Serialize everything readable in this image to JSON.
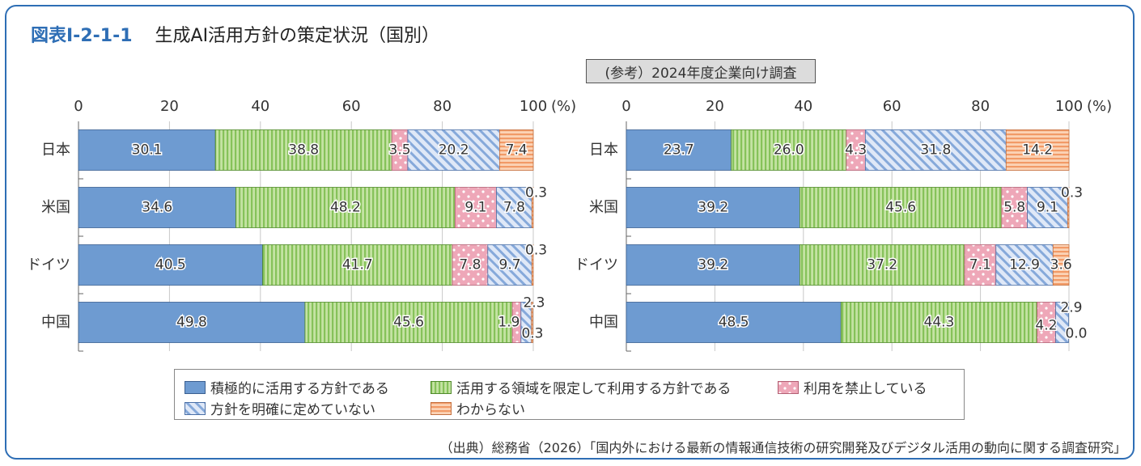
{
  "header": {
    "label": "図表Ⅰ-2-1-1",
    "title": "生成AI活用方針の策定状況（国別）"
  },
  "reference_note": "(参考）2024年度企業向け調査",
  "axis": {
    "ticks": [
      "0",
      "20",
      "40",
      "60",
      "80",
      "100"
    ],
    "unit": "(%)"
  },
  "legend": {
    "items": [
      "積極的に活用する方針である",
      "活用する領域を限定して利用する方針である",
      "利用を禁止している",
      "方針を明確に定めていない",
      "わからない"
    ]
  },
  "source": "（出典）総務省（2026）「国内外における最新の情報通信技術の研究開発及びデジタル活用の動向に関する調査研究」",
  "colors": {
    "active": "#6e9bd1",
    "limited": "#a9d67d",
    "banned": "#f2b7c4",
    "undecided": "#c9d9f2",
    "unknown": "#f6b48f",
    "accent": "#2e6eb5"
  },
  "chart_data": [
    {
      "type": "bar",
      "orientation": "horizontal",
      "stacked": true,
      "categories": [
        "日本",
        "米国",
        "ドイツ",
        "中国"
      ],
      "xlim": [
        0,
        100
      ],
      "series": [
        {
          "name": "積極的に活用する方針である",
          "values": [
            30.1,
            34.6,
            40.5,
            49.8
          ],
          "labels": [
            "30.1",
            "34.6",
            "40.5",
            "49.8"
          ]
        },
        {
          "name": "活用する領域を限定して利用する方針である",
          "values": [
            38.8,
            48.2,
            41.7,
            45.6
          ],
          "labels": [
            "38.8",
            "48.2",
            "41.7",
            "45.6"
          ]
        },
        {
          "name": "利用を禁止している",
          "values": [
            3.5,
            9.1,
            7.8,
            1.9
          ],
          "labels": [
            "3.5",
            "9.1",
            "7.8",
            "1.9"
          ]
        },
        {
          "name": "方針を明確に定めていない",
          "values": [
            20.2,
            7.8,
            9.7,
            2.3
          ],
          "labels": [
            "20.2",
            "7.8",
            "9.7",
            "2.3"
          ]
        },
        {
          "name": "わからない",
          "values": [
            7.4,
            0.3,
            0.3,
            0.3
          ],
          "labels": [
            "7.4",
            "0.3",
            "0.3",
            "0.3"
          ]
        }
      ]
    },
    {
      "type": "bar",
      "orientation": "horizontal",
      "stacked": true,
      "subtitle": "(参考）2024年度企業向け調査",
      "categories": [
        "日本",
        "米国",
        "ドイツ",
        "中国"
      ],
      "xlim": [
        0,
        100
      ],
      "series": [
        {
          "name": "積極的に活用する方針である",
          "values": [
            23.7,
            39.2,
            39.2,
            48.5
          ],
          "labels": [
            "23.7",
            "39.2",
            "39.2",
            "48.5"
          ]
        },
        {
          "name": "活用する領域を限定して利用する方針である",
          "values": [
            26.0,
            45.6,
            37.2,
            44.3
          ],
          "labels": [
            "26.0",
            "45.6",
            "37.2",
            "44.3"
          ]
        },
        {
          "name": "利用を禁止している",
          "values": [
            4.3,
            5.8,
            7.1,
            4.2
          ],
          "labels": [
            "4.3",
            "5.8",
            "7.1",
            "4.2"
          ]
        },
        {
          "name": "方針を明確に定めていない",
          "values": [
            31.8,
            9.1,
            12.9,
            2.9
          ],
          "labels": [
            "31.8",
            "9.1",
            "12.9",
            "2.9"
          ]
        },
        {
          "name": "わからない",
          "values": [
            14.2,
            0.3,
            3.6,
            0.0
          ],
          "labels": [
            "14.2",
            "0.3",
            "3.6",
            "0.0"
          ]
        }
      ]
    }
  ]
}
